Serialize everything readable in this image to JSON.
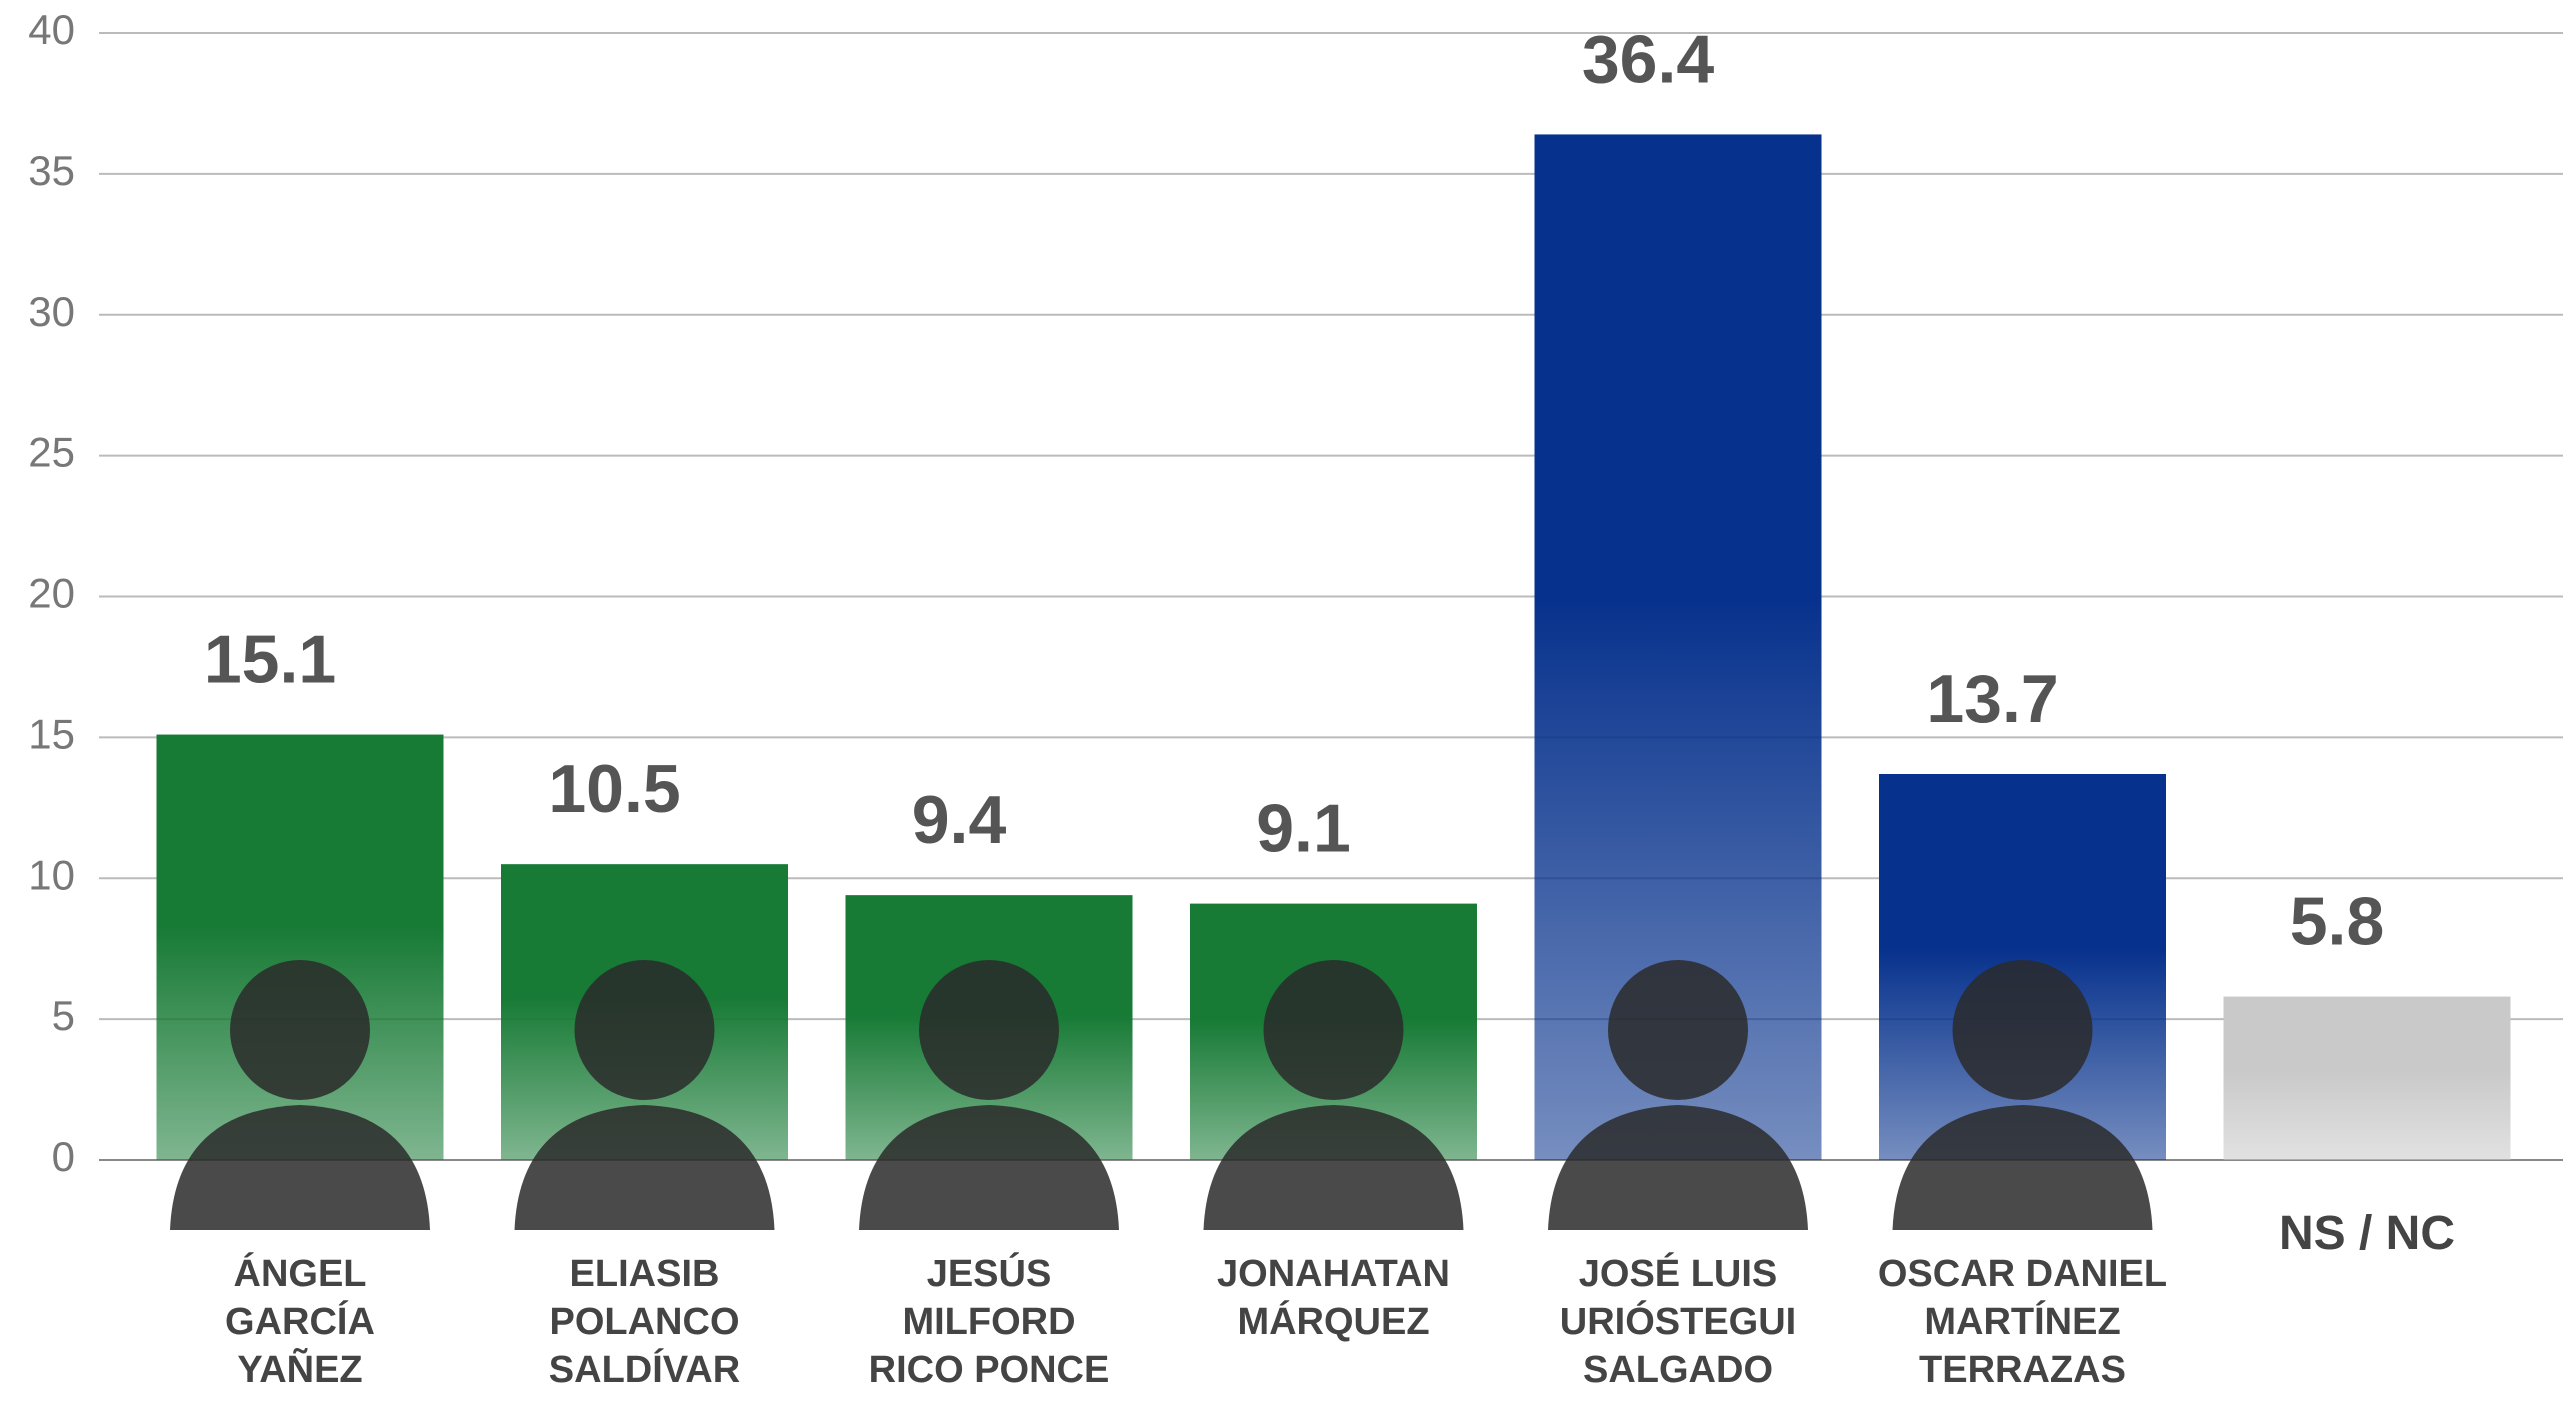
{
  "chart_data": {
    "type": "bar",
    "categories": [
      "ÁNGEL\nGARCÍA\nYAÑEZ",
      "ELIASIB\nPOLANCO\nSALDÍVAR",
      "JESÚS\nMILFORD\nRICO PONCE",
      "JONAHATAN\nMÁRQUEZ",
      "JOSÉ LUIS\nURIÓSTEGUI\nSALGADO",
      "OSCAR DANIEL\nMARTÍNEZ\nTERRAZAS",
      "NS / NC"
    ],
    "values": [
      15.1,
      10.5,
      9.4,
      9.1,
      36.4,
      13.7,
      5.8
    ],
    "colors": [
      "#177a35",
      "#177a35",
      "#177a35",
      "#177a35",
      "#06318c",
      "#06318c",
      "#c9c9c9"
    ],
    "ylim": [
      0,
      40
    ],
    "yticks": [
      0,
      5,
      10,
      15,
      20,
      25,
      30,
      35,
      40
    ],
    "grid": true
  }
}
